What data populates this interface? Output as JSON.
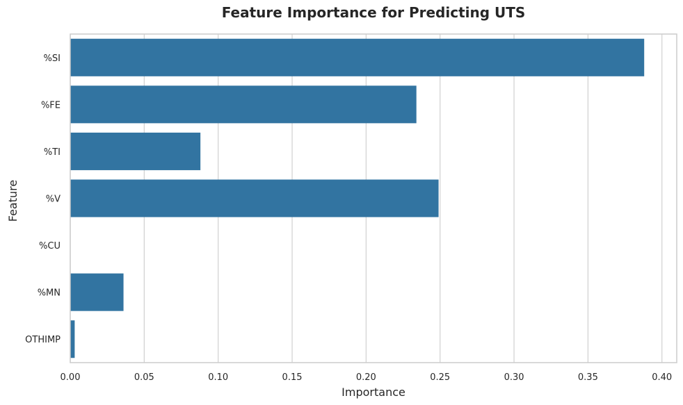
{
  "chart_data": {
    "type": "bar",
    "orientation": "horizontal",
    "title": "Feature Importance for Predicting UTS",
    "xlabel": "Importance",
    "ylabel": "Feature",
    "categories": [
      "%SI",
      "%FE",
      "%TI",
      "%V",
      "%CU",
      "%MN",
      "OTHIMP"
    ],
    "values": [
      0.388,
      0.234,
      0.088,
      0.249,
      0.0,
      0.036,
      0.003
    ],
    "xlim": [
      0,
      0.41
    ],
    "xticks": [
      0.0,
      0.05,
      0.1,
      0.15,
      0.2,
      0.25,
      0.3,
      0.35,
      0.4
    ],
    "xtick_labels": [
      "0.00",
      "0.05",
      "0.10",
      "0.15",
      "0.20",
      "0.25",
      "0.30",
      "0.35",
      "0.40"
    ],
    "grid": "x-axis vertical lines",
    "colors": {
      "bar": "#3274a1",
      "grid": "#d0d0d0",
      "frame": "#cccccc",
      "text": "#262626"
    }
  }
}
